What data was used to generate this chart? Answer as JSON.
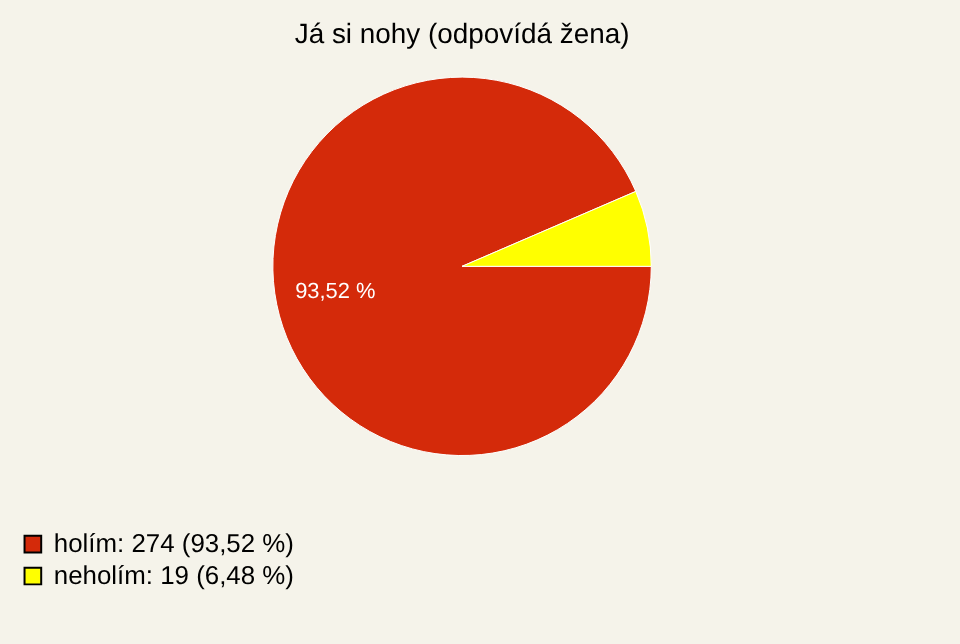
{
  "chart_data": {
    "type": "pie",
    "title": "Já si nohy (odpovídá žena)",
    "categories": [
      "holím: 274 (93,52 %)",
      "neholím: 19 (6,48 %)"
    ],
    "values": [
      93.52,
      6.48
    ],
    "colors": [
      "#d42a0a",
      "#ffff00"
    ],
    "value_labels": [
      "93,52 %",
      null
    ],
    "legend": "bottom left"
  }
}
